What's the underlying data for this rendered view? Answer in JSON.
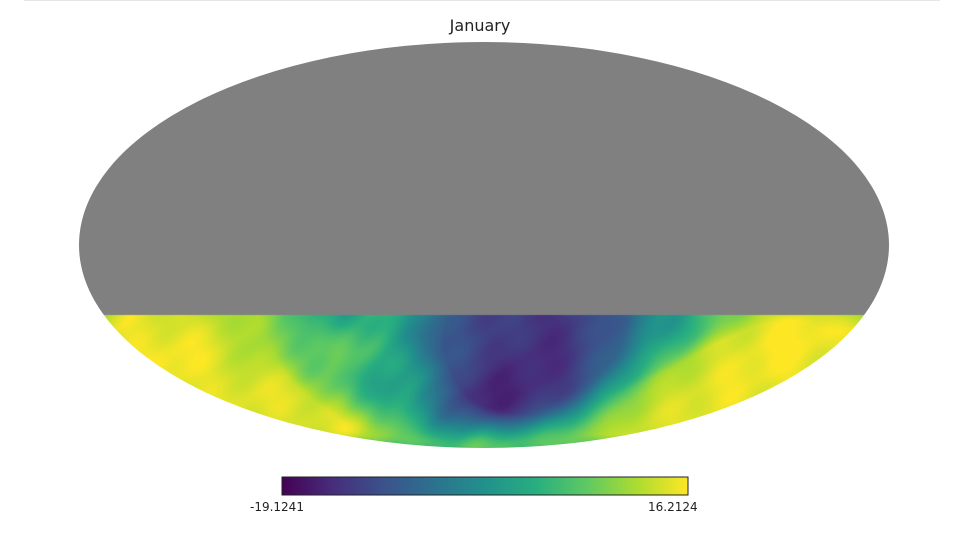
{
  "chart_data": {
    "type": "heatmap",
    "projection": "mollweide",
    "title": "January",
    "colormap": "viridis",
    "colorbar": {
      "min_label": "-19.1241",
      "max_label": "16.2124",
      "min": -19.1241,
      "max": 16.2124
    },
    "masked_color": "#808080",
    "masked_region": "upper portion of the sky (grey, no data)",
    "hotspots": [
      {
        "lon": 152,
        "lat": -38,
        "sigma": 20,
        "value": 16.2
      },
      {
        "lon": 158,
        "lat": -55,
        "sigma": 14,
        "value": 15.0
      },
      {
        "lon": -150,
        "lat": -40,
        "sigma": 20,
        "value": 15.5
      },
      {
        "lon": -125,
        "lat": -55,
        "sigma": 18,
        "value": 13.5
      },
      {
        "lon": 118,
        "lat": -22,
        "sigma": 22,
        "value": 10.0
      },
      {
        "lon": -28,
        "lat": -50,
        "sigma": 16,
        "value": -19.1
      },
      {
        "lon": -35,
        "lat": -25,
        "sigma": 12,
        "value": -16.5
      },
      {
        "lon": -15,
        "lat": -35,
        "sigma": 15,
        "value": -14.0
      },
      {
        "lon": 5,
        "lat": -30,
        "sigma": 20,
        "value": -8.0
      },
      {
        "lon": -60,
        "lat": -30,
        "sigma": 16,
        "value": -7.0
      }
    ],
    "background_value": 3.0
  }
}
